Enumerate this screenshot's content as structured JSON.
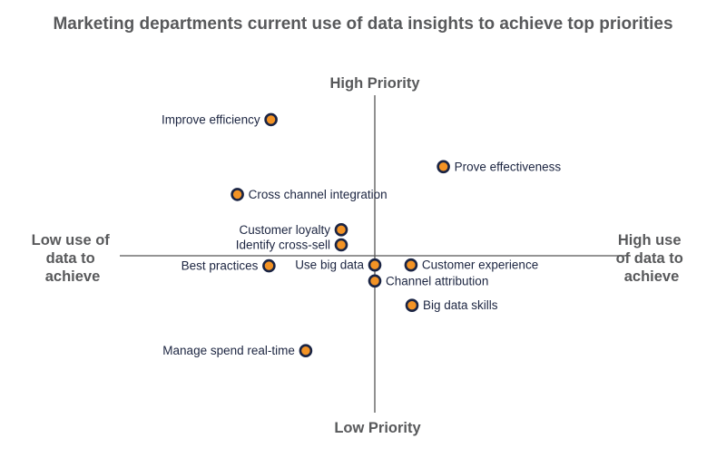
{
  "title": "Marketing departments current use of data insights to achieve top priorities",
  "colors": {
    "marker_fill": "#f39325",
    "marker_stroke": "#1a2444",
    "axis": "#555555",
    "label_text": "#1c2541",
    "heading_text": "#58595b"
  },
  "chart_data": {
    "type": "scatter",
    "title": "Marketing departments current use of data insights to achieve top priorities",
    "axes": {
      "top": "High Priority",
      "bottom": "Low Priority",
      "left": [
        "Low use of",
        "data to",
        "achieve"
      ],
      "right": [
        "High use",
        "of data to",
        "achieve"
      ]
    },
    "xlim": [
      -10,
      10
    ],
    "ylim": [
      -10,
      10
    ],
    "grid": false,
    "points": [
      {
        "label": "Improve efficiency",
        "x": -4.27,
        "y": 8.53,
        "label_side": "left"
      },
      {
        "label": "Prove effectiveness",
        "x": 2.82,
        "y": 5.58,
        "label_side": "right"
      },
      {
        "label": "Cross channel integration",
        "x": -5.65,
        "y": 3.84,
        "label_side": "right"
      },
      {
        "label": "Customer loyalty",
        "x": -1.38,
        "y": 1.63,
        "label_side": "left"
      },
      {
        "label": "Identify cross-sell",
        "x": -1.38,
        "y": 0.68,
        "label_side": "left"
      },
      {
        "label": "Best practices",
        "x": -4.35,
        "y": -0.63,
        "label_side": "left"
      },
      {
        "label": "Use big data",
        "x": 0.0,
        "y": -0.58,
        "label_side": "left"
      },
      {
        "label": "Customer experience",
        "x": 1.49,
        "y": -0.58,
        "label_side": "right"
      },
      {
        "label": "Channel attribution",
        "x": 0.0,
        "y": -1.58,
        "label_side": "right"
      },
      {
        "label": "Big data skills",
        "x": 1.53,
        "y": -3.11,
        "label_side": "right"
      },
      {
        "label": "Manage spend real-time",
        "x": -2.84,
        "y": -5.95,
        "label_side": "left"
      }
    ]
  }
}
